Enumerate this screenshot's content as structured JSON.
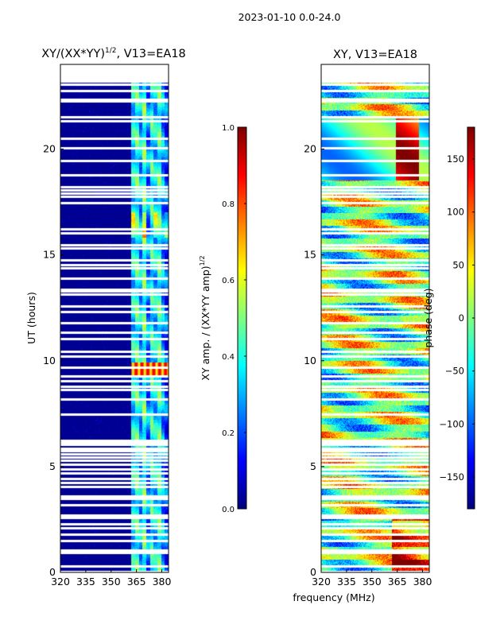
{
  "suptitle": "2023-01-10 0.0-24.0",
  "xlabel": "frequency (MHz)",
  "colors": {
    "jet": [
      "#00007f",
      "#0000ff",
      "#007fff",
      "#00ffff",
      "#7fff7f",
      "#ffff00",
      "#ff7f00",
      "#ff0000",
      "#7f0000"
    ],
    "gap": "#ffffff"
  },
  "chart_data": [
    {
      "type": "heatmap",
      "title": "XY/(XX*YY)",
      "title_exp": "1/2",
      "title_suffix": ", V13=EA18",
      "xlabel": "",
      "ylabel": "UT (hours)",
      "xlim": [
        320,
        384
      ],
      "ylim": [
        0,
        24
      ],
      "xticks": [
        "320",
        "335",
        "350",
        "365",
        "380"
      ],
      "yticks": [
        "0",
        "5",
        "10",
        "15",
        "20"
      ],
      "cmap": "jet",
      "description_values": "background near 0 (dark blue) below 362 MHz; elevated 0.3-0.5 in channels 362-382 MHz; peak ~0.8 near 9.5 h",
      "colorbar": {
        "label": "XY amp. / (XX*YY amp)",
        "label_exp": "1/2",
        "min": 0.0,
        "max": 1.0,
        "ticks": [
          "0.0",
          "0.2",
          "0.4",
          "0.6",
          "0.8",
          "1.0"
        ]
      }
    },
    {
      "type": "heatmap",
      "title": "XY, V13=EA18",
      "xlabel": "frequency (MHz)",
      "ylabel": "",
      "xlim": [
        320,
        384
      ],
      "ylim": [
        0,
        24
      ],
      "xticks": [
        "320",
        "335",
        "350",
        "365",
        "380"
      ],
      "yticks": [
        "0",
        "5",
        "10",
        "15",
        "20"
      ],
      "cmap": "jet",
      "description_values": "phase in degrees, structured noise across full range -180 to 180",
      "colorbar": {
        "label": "phase (deg)",
        "min": -180,
        "max": 180,
        "ticks": [
          "−150",
          "−100",
          "−50",
          "0",
          "50",
          "100",
          "150"
        ]
      }
    }
  ],
  "flagged_hours": [
    0.05,
    0.3,
    0.95,
    1.05,
    1.5,
    1.8,
    2.1,
    2.3,
    2.6,
    2.7,
    3.2,
    3.5,
    3.6,
    4.05,
    4.25,
    4.45,
    4.7,
    4.9,
    5.1,
    5.3,
    5.45,
    5.6,
    5.75,
    5.85,
    6.05,
    6.15,
    6.25,
    7.5,
    8.2,
    8.65,
    8.8,
    9.05,
    9.3,
    9.7,
    10.25,
    10.45,
    11.05,
    11.35,
    11.8,
    12.35,
    12.6,
    13.15,
    13.3,
    13.4,
    13.9,
    14.4,
    14.55,
    14.8,
    15.35,
    15.5,
    16.05,
    16.25,
    17.5,
    17.8,
    17.95,
    18.1,
    18.25,
    18.8,
    19.5,
    20.1,
    20.55,
    21.35,
    21.55,
    22.3,
    22.4,
    22.8,
    23.1,
    23.25,
    23.35,
    23.45,
    23.55,
    23.65,
    23.75,
    23.85,
    23.95
  ]
}
